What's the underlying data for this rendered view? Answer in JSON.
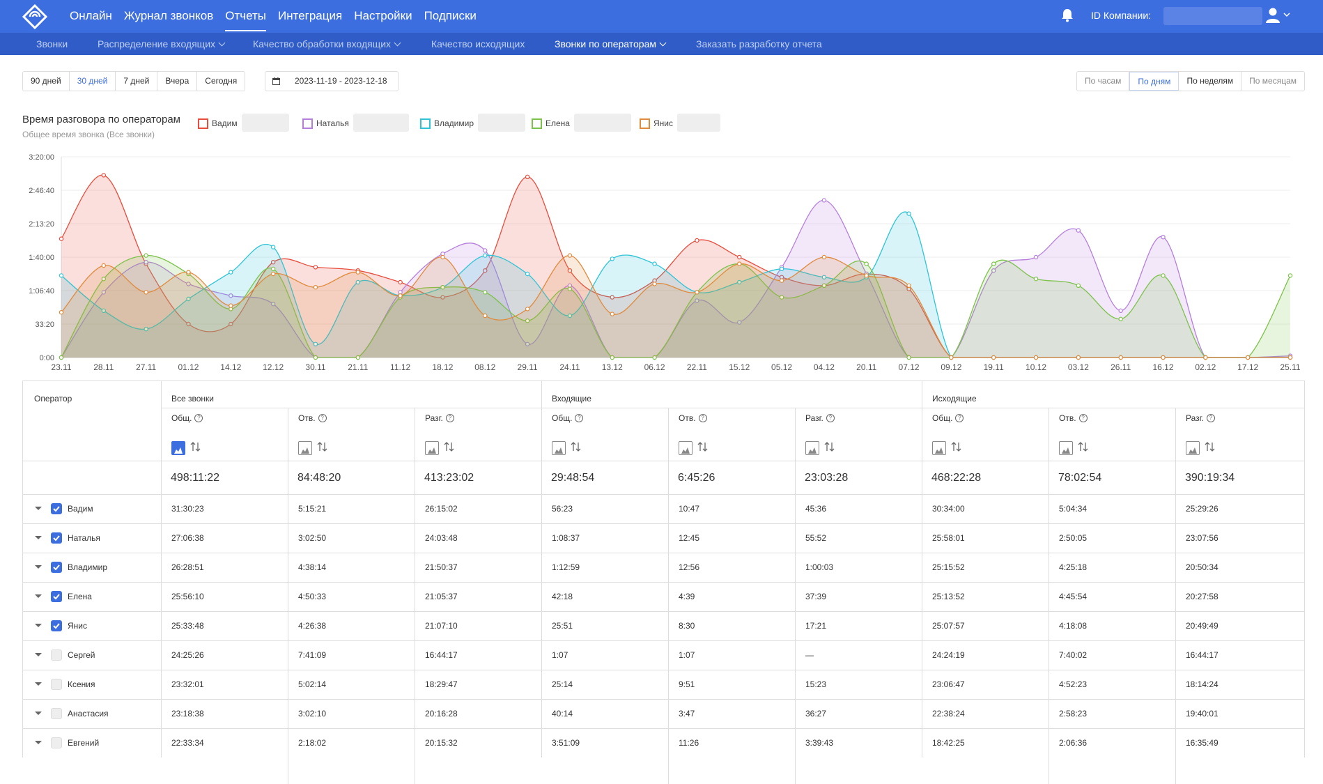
{
  "nav": {
    "items": [
      "Онлайн",
      "Журнал звонков",
      "Отчеты",
      "Интеграция",
      "Настройки",
      "Подписки"
    ],
    "active_index": 2,
    "company_label": "ID Компании:"
  },
  "subnav": {
    "items": [
      {
        "label": "Звонки",
        "chevron": false
      },
      {
        "label": "Распределение входящих",
        "chevron": true
      },
      {
        "label": "Качество обработки входящих",
        "chevron": true
      },
      {
        "label": "Качество исходящих",
        "chevron": false
      },
      {
        "label": "Звонки по операторам",
        "chevron": true
      },
      {
        "label": "Заказать разработку отчета",
        "chevron": false
      }
    ],
    "active_index": 4
  },
  "toolbar": {
    "periods": [
      "90 дней",
      "30 дней",
      "7 дней",
      "Вчера",
      "Сегодня"
    ],
    "active_period_index": 1,
    "date_range": "2023-11-19 - 2023-12-18",
    "granularity": [
      "По часам",
      "По дням",
      "По неделям",
      "По месяцам"
    ],
    "active_granularity_index": 1
  },
  "chart": {
    "title": "Время разговора по операторам",
    "subtitle": "Общее время звонка (Все звонки)"
  },
  "chart_data": {
    "type": "area",
    "y_ticks": [
      "0:00",
      "33:20",
      "1:06:40",
      "1:40:00",
      "2:13:20",
      "2:46:40",
      "3:20:00"
    ],
    "ylim_seconds": [
      0,
      12000
    ],
    "x_labels": [
      "23.11",
      "28.11",
      "27.11",
      "01.12",
      "14.12",
      "12.12",
      "30.11",
      "21.11",
      "11.12",
      "18.12",
      "08.12",
      "29.11",
      "24.11",
      "13.12",
      "06.12",
      "22.11",
      "15.12",
      "05.12",
      "04.12",
      "20.11",
      "07.12",
      "09.12",
      "19.11",
      "10.12",
      "03.12",
      "26.11",
      "16.12",
      "02.12",
      "17.12",
      "25.11"
    ],
    "series": [
      {
        "name": "Вадим",
        "color": "#e74c3c",
        "values": [
          7100,
          10900,
          5600,
          2000,
          2000,
          5700,
          5400,
          5200,
          4500,
          3600,
          5200,
          10800,
          5200,
          3600,
          4600,
          7000,
          6000,
          4800,
          4300,
          5000,
          4100,
          0,
          0,
          0,
          0,
          0,
          0,
          0,
          0,
          0
        ]
      },
      {
        "name": "Наталья",
        "color": "#b57edc",
        "values": [
          0,
          3900,
          5700,
          4400,
          3700,
          3200,
          0,
          0,
          3900,
          6200,
          6400,
          800,
          4300,
          0,
          0,
          3400,
          2100,
          5400,
          9400,
          5000,
          0,
          0,
          5200,
          6000,
          7600,
          2800,
          7200,
          0,
          0,
          100
        ]
      },
      {
        "name": "Владимир",
        "color": "#2ec4d6",
        "values": [
          4900,
          2800,
          1700,
          3500,
          5100,
          6600,
          800,
          4500,
          3700,
          4200,
          6100,
          5000,
          2500,
          5900,
          5600,
          3900,
          4500,
          5300,
          4800,
          4800,
          8600,
          0,
          0,
          0,
          0,
          0,
          0,
          0,
          0,
          0
        ]
      },
      {
        "name": "Елена",
        "color": "#7cc24a",
        "values": [
          0,
          4700,
          6100,
          5000,
          2900,
          5300,
          0,
          0,
          3600,
          4200,
          3900,
          2200,
          4100,
          0,
          0,
          3900,
          5600,
          3600,
          4300,
          5600,
          0,
          0,
          5600,
          4700,
          4300,
          2300,
          4900,
          0,
          0,
          4900
        ]
      },
      {
        "name": "Янис",
        "color": "#e08a3c",
        "values": [
          2700,
          5500,
          3900,
          5100,
          3100,
          5000,
          4200,
          5100,
          3700,
          6000,
          2500,
          2900,
          6100,
          2600,
          4400,
          3900,
          5600,
          4600,
          6000,
          4900,
          4300,
          0,
          0,
          0,
          0,
          0,
          0,
          0,
          0,
          0
        ]
      }
    ]
  },
  "table": {
    "operator_header": "Оператор",
    "groups": [
      "Все звонки",
      "Входящие",
      "Исходящие"
    ],
    "columns": [
      "Общ.",
      "Отв.",
      "Разг.",
      "Общ.",
      "Отв.",
      "Разг.",
      "Общ.",
      "Отв.",
      "Разг."
    ],
    "help_mark": "?",
    "totals": [
      "498:11:22",
      "84:48:20",
      "413:23:02",
      "29:48:54",
      "6:45:26",
      "23:03:28",
      "468:22:28",
      "78:02:54",
      "390:19:34"
    ],
    "rows": [
      {
        "name": "Вадим",
        "checked": true,
        "values": [
          "31:30:23",
          "5:15:21",
          "26:15:02",
          "56:23",
          "10:47",
          "45:36",
          "30:34:00",
          "5:04:34",
          "25:29:26"
        ]
      },
      {
        "name": "Наталья",
        "checked": true,
        "values": [
          "27:06:38",
          "3:02:50",
          "24:03:48",
          "1:08:37",
          "12:45",
          "55:52",
          "25:58:01",
          "2:50:05",
          "23:07:56"
        ]
      },
      {
        "name": "Владимир",
        "checked": true,
        "values": [
          "26:28:51",
          "4:38:14",
          "21:50:37",
          "1:12:59",
          "12:56",
          "1:00:03",
          "25:15:52",
          "4:25:18",
          "20:50:34"
        ]
      },
      {
        "name": "Елена",
        "checked": true,
        "values": [
          "25:56:10",
          "4:50:33",
          "21:05:37",
          "42:18",
          "4:39",
          "37:39",
          "25:13:52",
          "4:45:54",
          "20:27:58"
        ]
      },
      {
        "name": "Янис",
        "checked": true,
        "values": [
          "25:33:48",
          "4:26:38",
          "21:07:10",
          "25:51",
          "8:30",
          "17:21",
          "25:07:57",
          "4:18:08",
          "20:49:49"
        ]
      },
      {
        "name": "Сергей",
        "checked": false,
        "values": [
          "24:25:26",
          "7:41:09",
          "16:44:17",
          "1:07",
          "1:07",
          "—",
          "24:24:19",
          "7:40:02",
          "16:44:17"
        ]
      },
      {
        "name": "Ксения",
        "checked": false,
        "values": [
          "23:32:01",
          "5:02:14",
          "18:29:47",
          "25:14",
          "9:51",
          "15:23",
          "23:06:47",
          "4:52:23",
          "18:14:24"
        ]
      },
      {
        "name": "Анастасия",
        "checked": false,
        "values": [
          "23:18:38",
          "3:02:10",
          "20:16:28",
          "40:14",
          "3:47",
          "36:27",
          "22:38:24",
          "2:58:23",
          "19:40:01"
        ]
      },
      {
        "name": "Евгений",
        "checked": false,
        "values": [
          "22:33:34",
          "2:18:02",
          "20:15:32",
          "3:51:09",
          "11:26",
          "3:39:43",
          "18:42:25",
          "2:06:36",
          "16:35:49"
        ]
      }
    ]
  }
}
